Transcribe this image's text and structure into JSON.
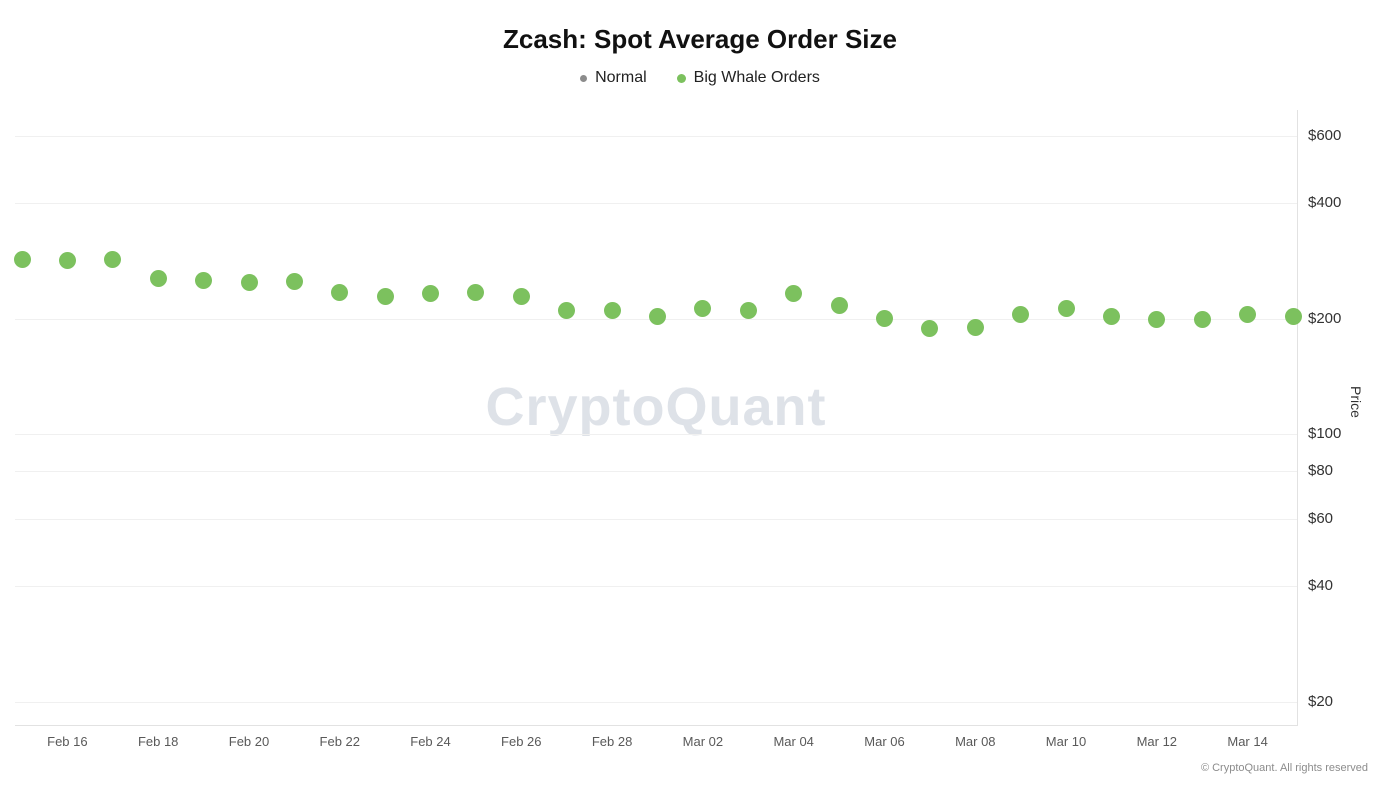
{
  "title": "Zcash: Spot Average Order Size",
  "watermark": "CryptoQuant",
  "footer": "© CryptoQuant. All rights reserved",
  "legend": [
    {
      "label": "Normal",
      "color": "#8c8c8c",
      "dot_size": 7
    },
    {
      "label": "Big Whale Orders",
      "color": "#7CC15E",
      "dot_size": 9
    }
  ],
  "chart_data": {
    "type": "scatter",
    "title": "Zcash: Spot Average Order Size",
    "x": [
      "Feb 15",
      "Feb 16",
      "Feb 17",
      "Feb 18",
      "Feb 19",
      "Feb 20",
      "Feb 21",
      "Feb 22",
      "Feb 23",
      "Feb 24",
      "Feb 25",
      "Feb 26",
      "Feb 27",
      "Feb 28",
      "Mar 01",
      "Mar 02",
      "Mar 03",
      "Mar 04",
      "Mar 05",
      "Mar 06",
      "Mar 07",
      "Mar 08",
      "Mar 09",
      "Mar 10",
      "Mar 11",
      "Mar 12",
      "Mar 13",
      "Mar 14",
      "Mar 15"
    ],
    "series": [
      {
        "name": "Normal",
        "color": "#8c8c8c",
        "values": []
      },
      {
        "name": "Big Whale Orders",
        "color": "#7CC15E",
        "values": [
          285,
          283,
          285,
          255,
          252,
          248,
          250,
          234,
          228,
          233,
          234,
          228,
          210,
          210,
          202,
          213,
          210,
          233,
          217,
          200,
          188,
          189,
          205,
          213,
          203,
          199,
          199,
          205,
          202
        ]
      }
    ],
    "y_axis": {
      "label": "Price",
      "scale": "log",
      "ticks": [
        "$600",
        "$400",
        "$200",
        "$100",
        "$80",
        "$60",
        "$40",
        "$20"
      ],
      "tick_values": [
        600,
        400,
        200,
        100,
        80,
        60,
        40,
        20
      ],
      "range": [
        17.4,
        700
      ]
    },
    "x_ticks": [
      "Feb 16",
      "Feb 18",
      "Feb 20",
      "Feb 22",
      "Feb 24",
      "Feb 26",
      "Feb 28",
      "Mar 02",
      "Mar 04",
      "Mar 06",
      "Mar 08",
      "Mar 10",
      "Mar 12",
      "Mar 14"
    ],
    "legend_position": "top",
    "grid": true
  }
}
